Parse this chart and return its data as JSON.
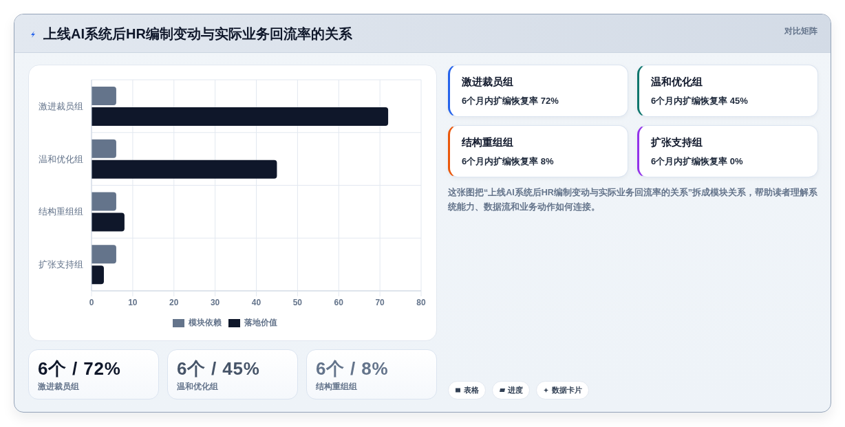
{
  "chart_data": [
    {
      "type": "bar",
      "title": "上线AI系统后HR编制变动与实际业务回流率的关系",
      "orientation": "horizontal",
      "categories": [
        "激进裁员组",
        "温和优化组",
        "结构重组组",
        "扩张支持组"
      ],
      "series": [
        {
          "name": "模块依赖",
          "color": "#64748b",
          "values": [
            6,
            6,
            6,
            6
          ]
        },
        {
          "name": "落地价值",
          "color": "#0f172a",
          "values": [
            72,
            45,
            8,
            3
          ]
        }
      ],
      "xlim": [
        0,
        80
      ],
      "xticks": [
        0,
        10,
        20,
        30,
        40,
        50,
        60,
        70,
        80
      ],
      "grid": true,
      "legend": "bottom",
      "annotations": [
        "这张图把“上线AI系统后HR编制变动与实际业务回流率的关系”拆成模块关系，帮助读者理解系统能力、数据流和业务动作如何连接。",
        "表格",
        "进度",
        "数据卡片"
      ]
    },
    {
      "type": "other",
      "title": "对比矩阵",
      "colors": [
        "#2563eb",
        "#0f766e",
        "#ea580c",
        "#9333ea"
      ],
      "annotations": [
        "激进裁员组",
        "6个月内扩编恢复率 72%",
        "温和优化组",
        "6个月内扩编恢复率 45%",
        "结构重组组",
        "6个月内扩编恢复率 8%",
        "扩张支持组",
        "6个月内扩编恢复率 0%"
      ]
    },
    {
      "type": "other",
      "annotations": [
        "6个 / 72%",
        "激进裁员组",
        "6个 / 45%",
        "温和优化组",
        "6个 / 8%",
        "结构重组组"
      ]
    }
  ]
}
